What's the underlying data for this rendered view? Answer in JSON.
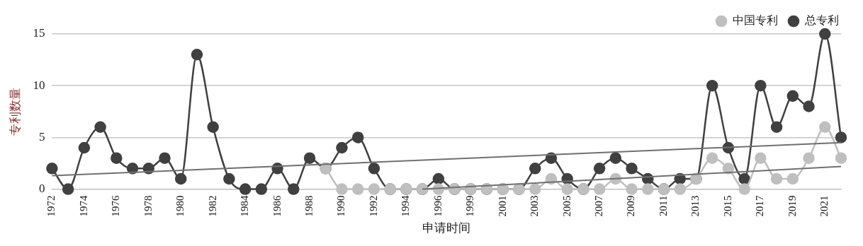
{
  "chart_data": {
    "type": "line",
    "xlabel": "申请时间",
    "ylabel": "专利数量",
    "categories": [
      "1972",
      null,
      "1974",
      null,
      "1976",
      null,
      "1978",
      null,
      "1980",
      null,
      "1982",
      null,
      "1984",
      null,
      "1986",
      null,
      "1988",
      null,
      "1990",
      null,
      "1992",
      null,
      "1994",
      null,
      "1996",
      null,
      "1999",
      null,
      "2001",
      null,
      "2003",
      null,
      "2005",
      null,
      "2007",
      null,
      "2009",
      null,
      "2011",
      null,
      "2013",
      null,
      "2015",
      null,
      "2017",
      null,
      "2019",
      null,
      "2021",
      null
    ],
    "series": [
      {
        "name": "总专利",
        "color": "#404040",
        "values": [
          2,
          0,
          4,
          6,
          3,
          2,
          2,
          3,
          1,
          13,
          6,
          1,
          0,
          0,
          2,
          0,
          3,
          2,
          4,
          5,
          2,
          0,
          0,
          0,
          1,
          0,
          0,
          0,
          0,
          0,
          2,
          3,
          1,
          0,
          2,
          3,
          2,
          1,
          0,
          1,
          1,
          10,
          4,
          1,
          10,
          6,
          9,
          8,
          15,
          5
        ]
      },
      {
        "name": "中国专利",
        "color": "#bfbfbf",
        "values": [
          null,
          null,
          null,
          null,
          null,
          null,
          null,
          null,
          null,
          null,
          null,
          null,
          null,
          null,
          null,
          null,
          null,
          2,
          0,
          0,
          0,
          0,
          0,
          0,
          0,
          0,
          0,
          0,
          0,
          0,
          0,
          1,
          0,
          0,
          0,
          1,
          0,
          0,
          0,
          0,
          1,
          3,
          2,
          0,
          3,
          1,
          1,
          3,
          6,
          3
        ]
      },
      {
        "type": "line",
        "marker": "none",
        "color": "#707070",
        "values": [
          1.3,
          null,
          null,
          null,
          null,
          null,
          null,
          null,
          null,
          null,
          null,
          null,
          null,
          null,
          null,
          null,
          null,
          null,
          null,
          null,
          null,
          null,
          null,
          null,
          null,
          null,
          null,
          null,
          null,
          null,
          null,
          null,
          null,
          null,
          null,
          null,
          null,
          null,
          null,
          null,
          null,
          null,
          null,
          null,
          null,
          null,
          null,
          null,
          null,
          4.5
        ]
      },
      {
        "type": "line",
        "marker": "none",
        "color": "#707070",
        "values": [
          null,
          null,
          null,
          null,
          null,
          null,
          null,
          null,
          null,
          null,
          null,
          null,
          null,
          null,
          null,
          null,
          null,
          null,
          null,
          null,
          null,
          null,
          null,
          0,
          null,
          null,
          null,
          null,
          null,
          null,
          null,
          null,
          null,
          null,
          null,
          null,
          null,
          null,
          null,
          null,
          null,
          null,
          null,
          null,
          null,
          null,
          null,
          null,
          null,
          2.2
        ]
      }
    ],
    "ylim": [
      0,
      15
    ],
    "yticks": [
      0,
      5,
      10,
      15
    ],
    "grid": "y",
    "legend": "top right",
    "marker": "circle"
  }
}
